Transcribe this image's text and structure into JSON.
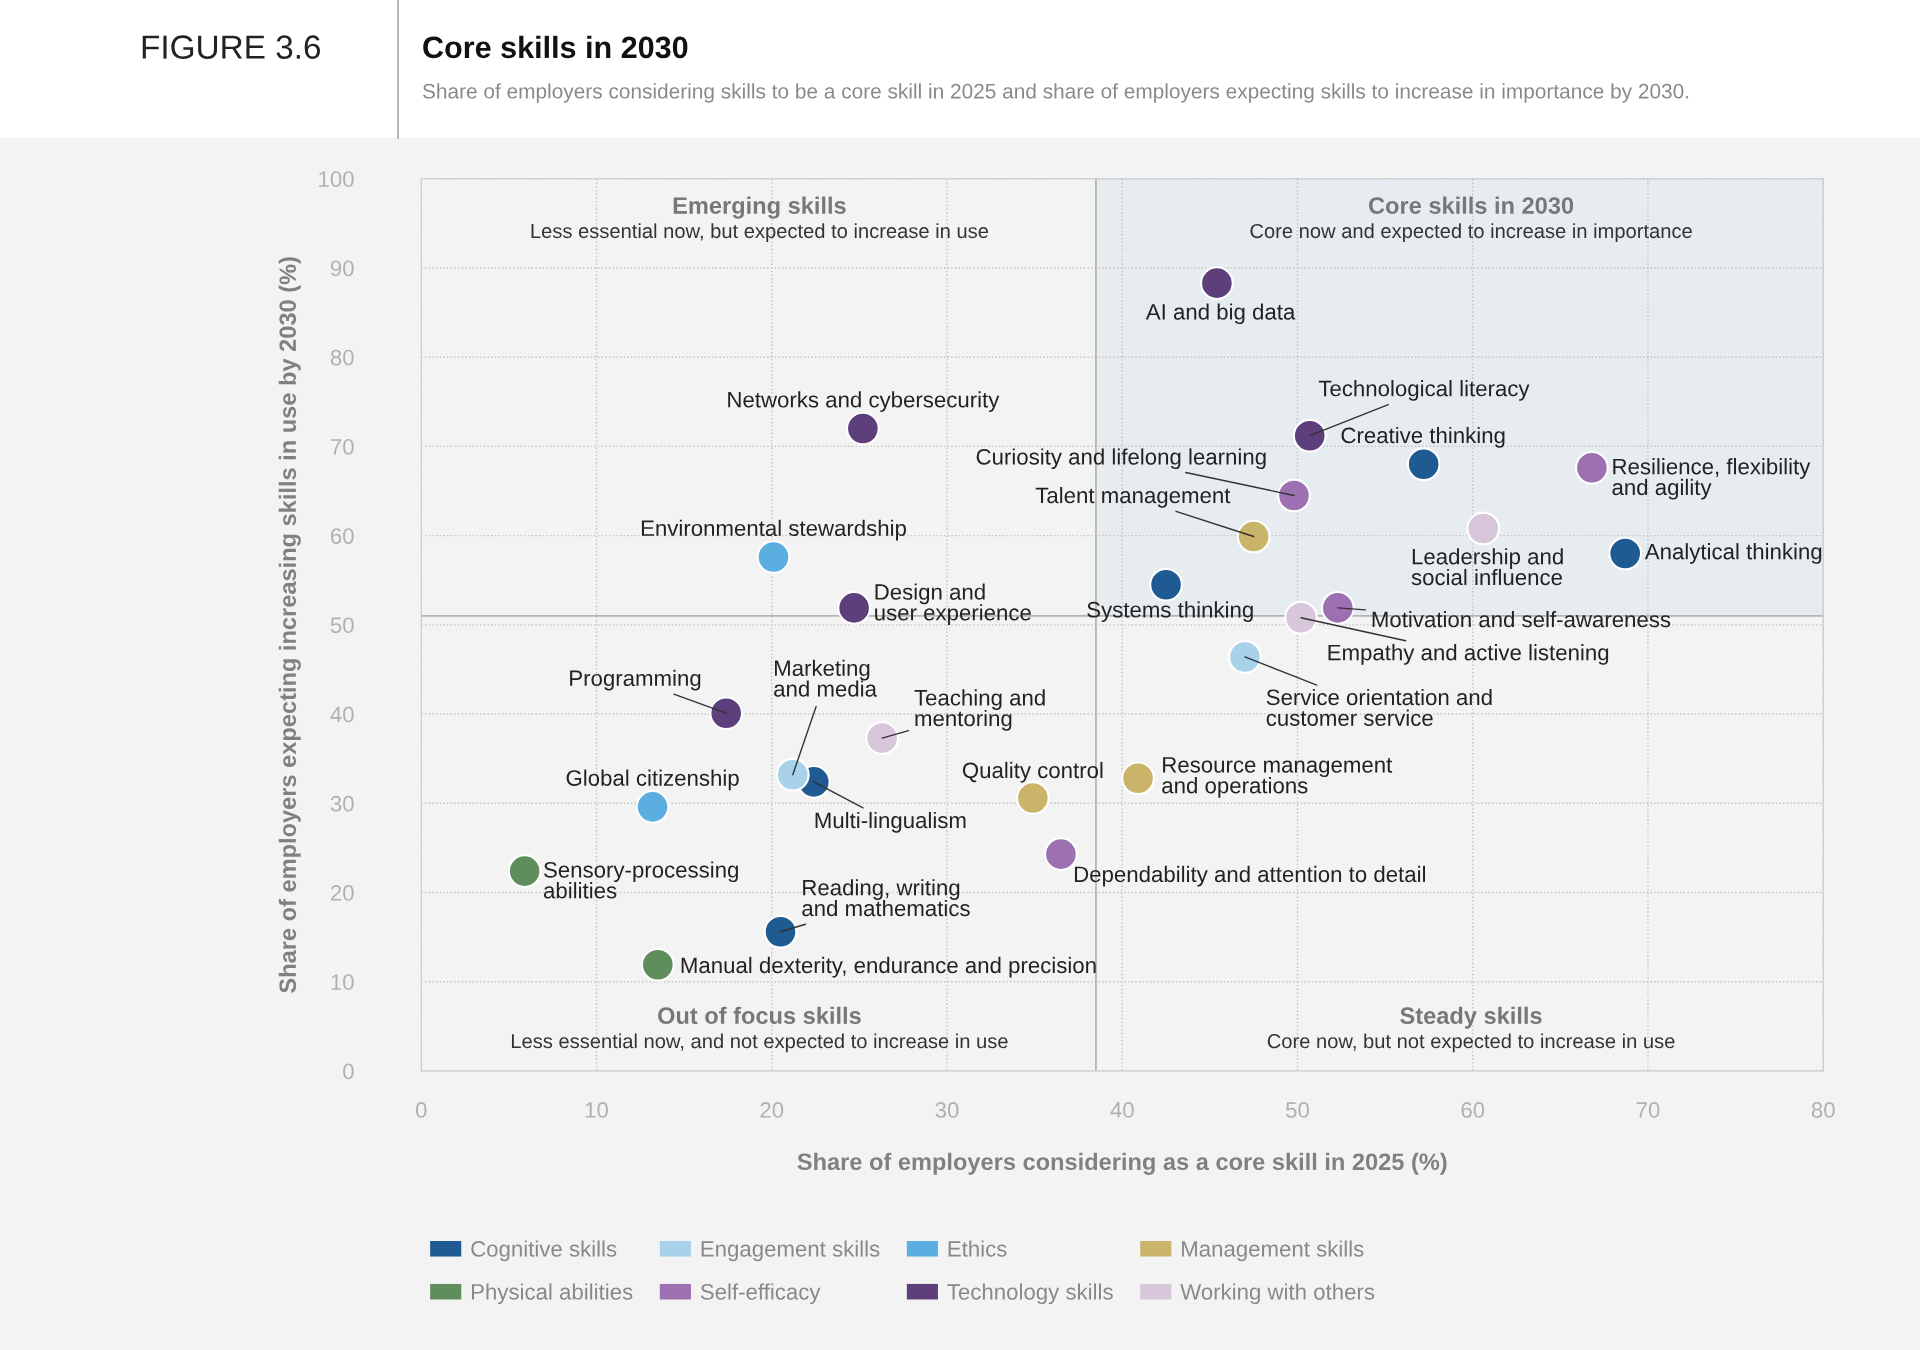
{
  "chart_data": {
    "type": "scatter",
    "title": "Core skills in 2030",
    "subtitle": "Share of employers considering skills to be a core skill in 2025 and share of employers expecting skills to increase in importance by 2030.",
    "xlabel": "Share of employers considering as a core skill in 2025 (%)",
    "ylabel": "Share of employers expecting increasing skills in use by 2030 (%)",
    "xlim": [
      0,
      80
    ],
    "xticks": [
      0,
      10,
      20,
      30,
      40,
      50,
      60,
      70,
      80
    ],
    "ylim": [
      0,
      100
    ],
    "yticks": [
      0,
      10,
      20,
      30,
      40,
      50,
      60,
      70,
      80,
      90,
      100
    ],
    "grid": true,
    "legend": "bottom",
    "marker": "circle",
    "ref_lines": [
      {
        "axis": "x",
        "value": 38.5,
        "label": null,
        "color": "#b5b5b5"
      },
      {
        "axis": "y",
        "value": 51,
        "label": null,
        "color": "#b5b5b5"
      }
    ],
    "bands": [
      {
        "axis": "x",
        "from": 38.5,
        "to": 80,
        "label": null,
        "color": "#e6ecf0"
      }
    ],
    "series": [
      {
        "name": "Cognitive skills",
        "color": "#1f5a92",
        "x": [
          57.2,
          68.7,
          42.5,
          22.4,
          20.5
        ],
        "values": [
          68.0,
          58.0,
          54.5,
          32.4,
          15.6
        ]
      },
      {
        "name": "Engagement skills",
        "color": "#a8d2ea",
        "x": [
          47.0,
          21.2
        ],
        "values": [
          46.4,
          33.2
        ]
      },
      {
        "name": "Ethics",
        "color": "#5aaee0",
        "x": [
          20.1,
          13.2
        ],
        "values": [
          57.6,
          29.6
        ]
      },
      {
        "name": "Management skills",
        "color": "#c9b46a",
        "x": [
          47.5,
          34.9,
          40.9
        ],
        "values": [
          59.9,
          30.6,
          32.8
        ]
      },
      {
        "name": "Physical abilities",
        "color": "#5f8d5b",
        "x": [
          5.9,
          13.5
        ],
        "values": [
          22.4,
          11.9
        ]
      },
      {
        "name": "Self-efficacy",
        "color": "#9c70b1",
        "x": [
          66.8,
          49.8,
          52.3,
          36.5
        ],
        "values": [
          67.6,
          64.5,
          51.9,
          24.3
        ]
      },
      {
        "name": "Technology skills",
        "color": "#5d3f7b",
        "x": [
          45.4,
          50.7,
          25.2,
          24.7,
          17.4
        ],
        "values": [
          88.3,
          71.2,
          72.0,
          51.9,
          40.1
        ]
      },
      {
        "name": "Working with others",
        "color": "#d8c6da",
        "x": [
          60.6,
          50.2,
          26.3
        ],
        "values": [
          60.8,
          50.8,
          37.3
        ]
      }
    ],
    "annotations": [
      "FIGURE 3.6",
      "Emerging skills",
      "Less essential now, but expected to increase in use",
      "Core skills in 2030",
      "Core now and expected to increase in importance",
      "Out of focus skills",
      "Less essential now, and not expected to increase in use",
      "Steady skills",
      "Core now, but not expected to increase in use",
      {
        "text": "AI and big data",
        "x": 45.4,
        "y": 88.3
      },
      {
        "text": "Technological literacy",
        "x": 50.7,
        "y": 71.2
      },
      {
        "text": "Creative thinking",
        "x": 57.2,
        "y": 68.0
      },
      {
        "text": "Resilience, flexibility\nand agility",
        "x": 66.8,
        "y": 67.6
      },
      {
        "text": "Curiosity and lifelong learning",
        "x": 49.8,
        "y": 64.5
      },
      {
        "text": "Talent management",
        "x": 47.5,
        "y": 59.9
      },
      {
        "text": "Leadership and\nsocial influence",
        "x": 60.6,
        "y": 60.8
      },
      {
        "text": "Analytical thinking",
        "x": 68.7,
        "y": 58.0
      },
      {
        "text": "Systems thinking",
        "x": 42.5,
        "y": 54.5
      },
      {
        "text": "Motivation and self-awareness",
        "x": 52.3,
        "y": 51.9
      },
      {
        "text": "Empathy and active listening",
        "x": 50.2,
        "y": 50.8
      },
      {
        "text": "Service orientation and\ncustomer service",
        "x": 47.0,
        "y": 46.4
      },
      {
        "text": "Networks and cybersecurity",
        "x": 25.2,
        "y": 72.0
      },
      {
        "text": "Environmental stewardship",
        "x": 20.1,
        "y": 57.6
      },
      {
        "text": "Design and\nuser experience",
        "x": 24.7,
        "y": 51.9
      },
      {
        "text": "Programming",
        "x": 17.4,
        "y": 40.1
      },
      {
        "text": "Marketing\nand media",
        "x": 21.2,
        "y": 33.2
      },
      {
        "text": "Multi-lingualism",
        "x": 22.4,
        "y": 32.4
      },
      {
        "text": "Teaching and\nmentoring",
        "x": 26.3,
        "y": 37.3
      },
      {
        "text": "Global citizenship",
        "x": 13.2,
        "y": 29.6
      },
      {
        "text": "Quality control",
        "x": 34.9,
        "y": 30.6
      },
      {
        "text": "Resource management\nand operations",
        "x": 40.9,
        "y": 32.8
      },
      {
        "text": "Dependability and attention to detail",
        "x": 36.5,
        "y": 24.3
      },
      {
        "text": "Sensory-processing\nabilities",
        "x": 5.9,
        "y": 22.4
      },
      {
        "text": "Reading, writing\nand mathematics",
        "x": 20.5,
        "y": 15.6
      },
      {
        "text": "Manual dexterity, endurance and precision",
        "x": 13.5,
        "y": 11.9
      }
    ]
  }
}
